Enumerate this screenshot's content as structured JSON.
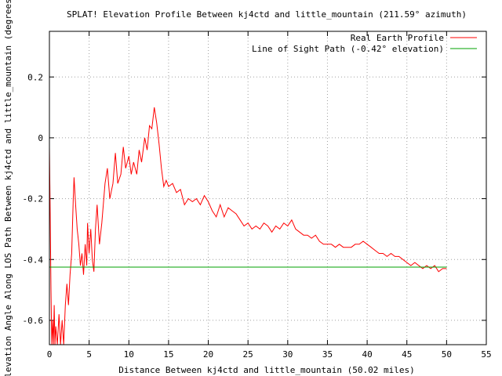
{
  "chart_data": {
    "type": "line",
    "title": "SPLAT! Elevation Profile Between kj4ctd and little_mountain (211.59° azimuth)",
    "xlabel": "Distance Between kj4ctd and little_mountain (50.02 miles)",
    "ylabel": "Elevation Angle Along LOS Path Between kj4ctd and little_mountain (degrees)",
    "xlim": [
      0,
      55
    ],
    "ylim": [
      -0.68,
      0.35
    ],
    "x_ticks": [
      0,
      5,
      10,
      15,
      20,
      25,
      30,
      35,
      40,
      45,
      50,
      55
    ],
    "y_ticks": [
      -0.6,
      -0.4,
      -0.2,
      0,
      0.2
    ],
    "x_tick_labels": [
      "0",
      "5",
      "10",
      "15",
      "20",
      "25",
      "30",
      "35",
      "40",
      "45",
      "50",
      "55"
    ],
    "y_tick_labels": [
      "-0.6",
      "-0.4",
      "-0.2",
      "0",
      "0.2"
    ],
    "grid": true,
    "legend_position": "top-right",
    "series": [
      {
        "name": "Real Earth Profile",
        "color": "#ff0000",
        "points": [
          [
            0.0,
            -0.03
          ],
          [
            0.1,
            -0.25
          ],
          [
            0.2,
            -0.5
          ],
          [
            0.3,
            -0.68
          ],
          [
            0.4,
            -0.6
          ],
          [
            0.5,
            -0.68
          ],
          [
            0.6,
            -0.55
          ],
          [
            0.7,
            -0.68
          ],
          [
            0.8,
            -0.62
          ],
          [
            1.0,
            -0.68
          ],
          [
            1.2,
            -0.58
          ],
          [
            1.4,
            -0.68
          ],
          [
            1.6,
            -0.6
          ],
          [
            1.8,
            -0.68
          ],
          [
            2.0,
            -0.55
          ],
          [
            2.2,
            -0.48
          ],
          [
            2.4,
            -0.55
          ],
          [
            2.6,
            -0.45
          ],
          [
            2.8,
            -0.38
          ],
          [
            3.0,
            -0.2
          ],
          [
            3.1,
            -0.13
          ],
          [
            3.3,
            -0.22
          ],
          [
            3.5,
            -0.3
          ],
          [
            3.7,
            -0.35
          ],
          [
            3.9,
            -0.42
          ],
          [
            4.1,
            -0.38
          ],
          [
            4.3,
            -0.45
          ],
          [
            4.5,
            -0.35
          ],
          [
            4.7,
            -0.42
          ],
          [
            4.8,
            -0.28
          ],
          [
            5.0,
            -0.38
          ],
          [
            5.2,
            -0.3
          ],
          [
            5.4,
            -0.4
          ],
          [
            5.6,
            -0.44
          ],
          [
            5.8,
            -0.3
          ],
          [
            6.0,
            -0.22
          ],
          [
            6.3,
            -0.35
          ],
          [
            6.6,
            -0.28
          ],
          [
            7.0,
            -0.15
          ],
          [
            7.3,
            -0.1
          ],
          [
            7.6,
            -0.2
          ],
          [
            8.0,
            -0.15
          ],
          [
            8.3,
            -0.05
          ],
          [
            8.6,
            -0.15
          ],
          [
            9.0,
            -0.12
          ],
          [
            9.3,
            -0.03
          ],
          [
            9.6,
            -0.1
          ],
          [
            10.0,
            -0.06
          ],
          [
            10.3,
            -0.12
          ],
          [
            10.6,
            -0.08
          ],
          [
            11.0,
            -0.12
          ],
          [
            11.3,
            -0.04
          ],
          [
            11.6,
            -0.08
          ],
          [
            12.0,
            0.0
          ],
          [
            12.3,
            -0.04
          ],
          [
            12.6,
            0.04
          ],
          [
            12.9,
            0.03
          ],
          [
            13.2,
            0.1
          ],
          [
            13.5,
            0.05
          ],
          [
            13.8,
            -0.02
          ],
          [
            14.1,
            -0.1
          ],
          [
            14.4,
            -0.16
          ],
          [
            14.7,
            -0.14
          ],
          [
            15.0,
            -0.16
          ],
          [
            15.5,
            -0.15
          ],
          [
            16.0,
            -0.18
          ],
          [
            16.5,
            -0.17
          ],
          [
            17.0,
            -0.22
          ],
          [
            17.5,
            -0.2
          ],
          [
            18.0,
            -0.21
          ],
          [
            18.5,
            -0.2
          ],
          [
            19.0,
            -0.22
          ],
          [
            19.5,
            -0.19
          ],
          [
            20.0,
            -0.21
          ],
          [
            20.5,
            -0.24
          ],
          [
            21.0,
            -0.26
          ],
          [
            21.5,
            -0.22
          ],
          [
            22.0,
            -0.26
          ],
          [
            22.5,
            -0.23
          ],
          [
            23.0,
            -0.24
          ],
          [
            23.5,
            -0.25
          ],
          [
            24.0,
            -0.27
          ],
          [
            24.5,
            -0.29
          ],
          [
            25.0,
            -0.28
          ],
          [
            25.5,
            -0.3
          ],
          [
            26.0,
            -0.29
          ],
          [
            26.5,
            -0.3
          ],
          [
            27.0,
            -0.28
          ],
          [
            27.5,
            -0.29
          ],
          [
            28.0,
            -0.31
          ],
          [
            28.5,
            -0.29
          ],
          [
            29.0,
            -0.3
          ],
          [
            29.5,
            -0.28
          ],
          [
            30.0,
            -0.29
          ],
          [
            30.5,
            -0.27
          ],
          [
            31.0,
            -0.3
          ],
          [
            31.5,
            -0.31
          ],
          [
            32.0,
            -0.32
          ],
          [
            32.5,
            -0.32
          ],
          [
            33.0,
            -0.33
          ],
          [
            33.5,
            -0.32
          ],
          [
            34.0,
            -0.34
          ],
          [
            34.5,
            -0.35
          ],
          [
            35.0,
            -0.35
          ],
          [
            35.5,
            -0.35
          ],
          [
            36.0,
            -0.36
          ],
          [
            36.5,
            -0.35
          ],
          [
            37.0,
            -0.36
          ],
          [
            37.5,
            -0.36
          ],
          [
            38.0,
            -0.36
          ],
          [
            38.5,
            -0.35
          ],
          [
            39.0,
            -0.35
          ],
          [
            39.5,
            -0.34
          ],
          [
            40.0,
            -0.35
          ],
          [
            40.5,
            -0.36
          ],
          [
            41.0,
            -0.37
          ],
          [
            41.5,
            -0.38
          ],
          [
            42.0,
            -0.38
          ],
          [
            42.5,
            -0.39
          ],
          [
            43.0,
            -0.38
          ],
          [
            43.5,
            -0.39
          ],
          [
            44.0,
            -0.39
          ],
          [
            44.5,
            -0.4
          ],
          [
            45.0,
            -0.41
          ],
          [
            45.5,
            -0.42
          ],
          [
            46.0,
            -0.41
          ],
          [
            46.5,
            -0.42
          ],
          [
            47.0,
            -0.43
          ],
          [
            47.5,
            -0.42
          ],
          [
            48.0,
            -0.43
          ],
          [
            48.5,
            -0.42
          ],
          [
            49.0,
            -0.44
          ],
          [
            49.5,
            -0.43
          ],
          [
            50.0,
            -0.43
          ]
        ]
      },
      {
        "name": "Line of Sight Path (-0.42° elevation)",
        "color": "#00a000",
        "points": [
          [
            0.0,
            -0.425
          ],
          [
            50.02,
            -0.425
          ]
        ]
      }
    ]
  }
}
